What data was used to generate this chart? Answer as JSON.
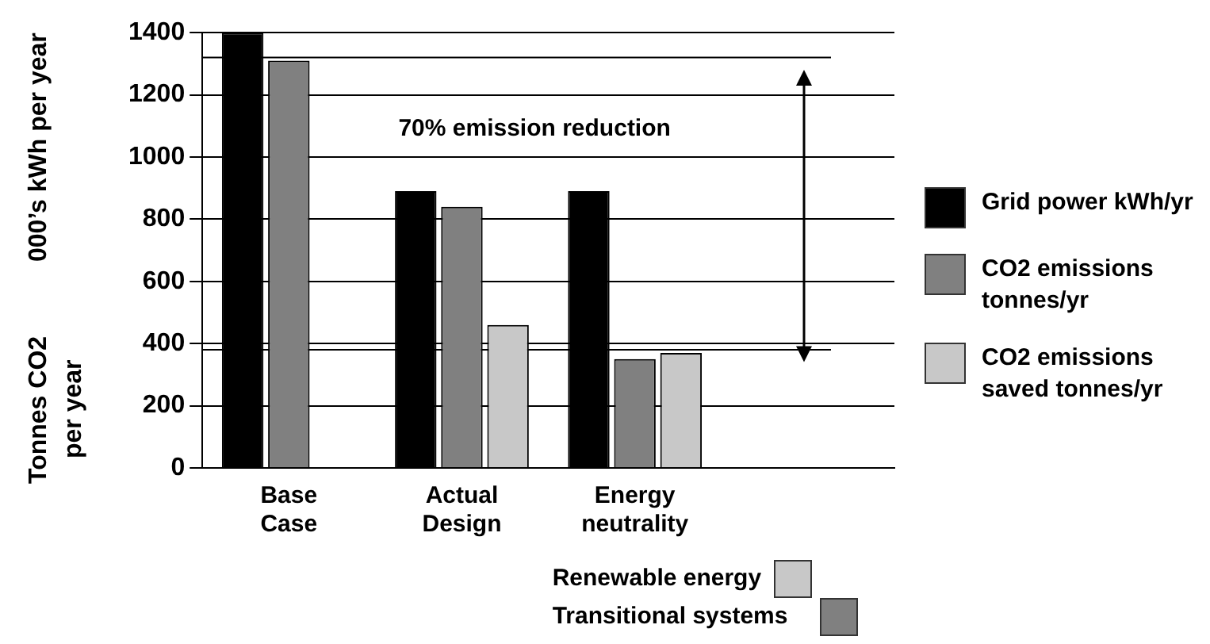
{
  "chart_data": {
    "type": "bar",
    "ylabel": "000’s kWh per year",
    "categories": [
      "Base Case",
      "Actual Design",
      "Energy neutrality",
      null
    ],
    "series": [
      {
        "name": "Grid power kWh/yr",
        "color": "#000000",
        "values": [
          1400,
          890,
          890,
          null
        ]
      },
      {
        "name": "CO2 emissions tonnes/yr",
        "color": "#808080",
        "values": [
          1310,
          840,
          350,
          null
        ]
      },
      {
        "name": "CO2 emissions saved tonnes/yr",
        "color": "#c8c8c8",
        "values": [
          null,
          460,
          370,
          null
        ]
      }
    ],
    "ylim": [
      0,
      1400
    ],
    "yticks": [
      0,
      200,
      400,
      600,
      800,
      1000,
      1200,
      1400
    ],
    "grid": "y",
    "legend": "right",
    "ref_lines": [
      {
        "axis": "y",
        "value": 1320,
        "color": "#000000"
      },
      {
        "axis": "y",
        "value": 380,
        "color": "#000000"
      }
    ],
    "annotations": [
      "70% emission reduction",
      "Tonnes CO2 per year",
      "Renewable energy",
      "Transitional systems"
    ]
  }
}
